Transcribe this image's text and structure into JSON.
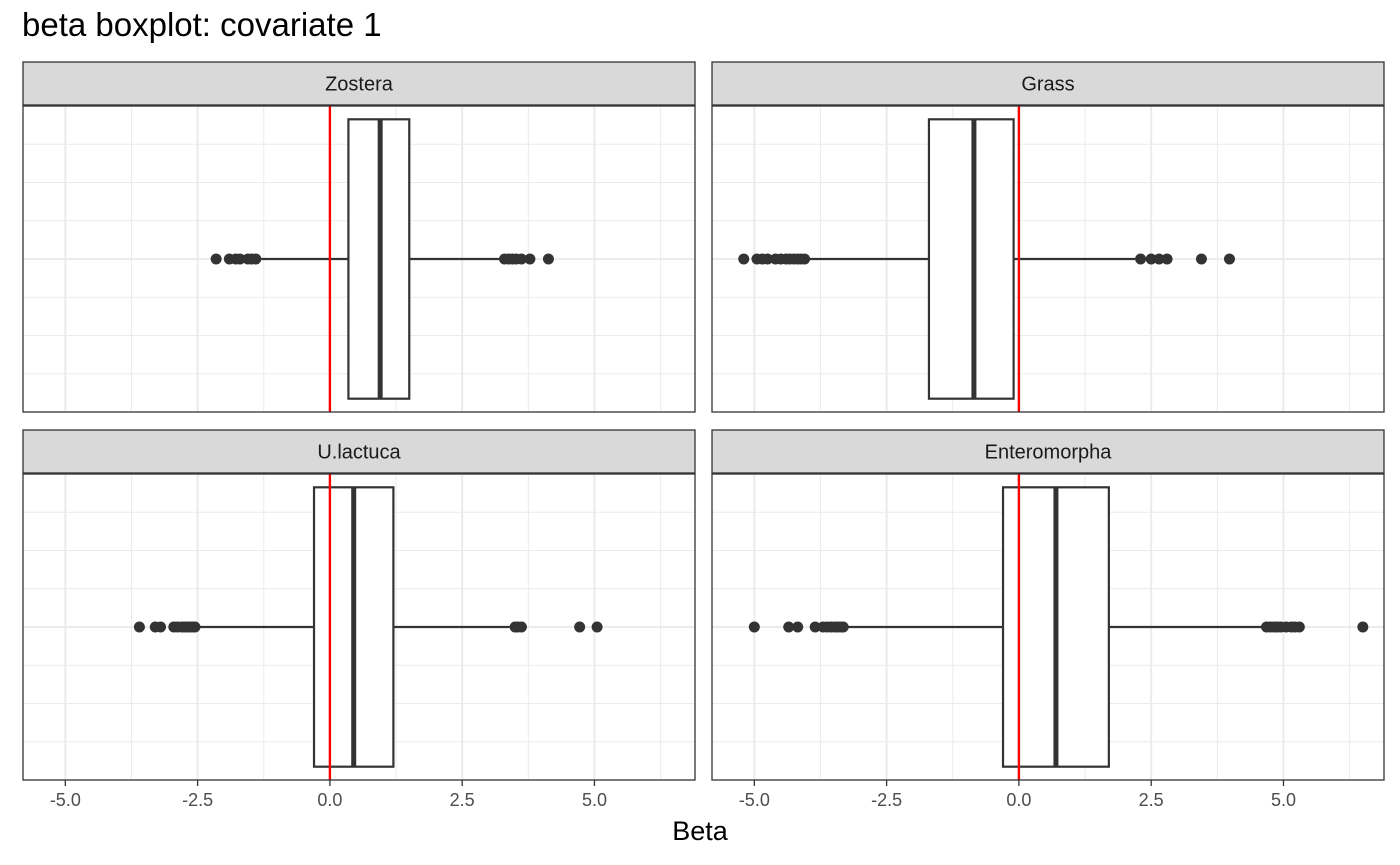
{
  "chart_data": {
    "type": "boxplot",
    "title": "beta boxplot: covariate 1",
    "xlabel": "Beta",
    "ylabel": "",
    "xlim": [
      -5.8,
      6.9
    ],
    "x_ticks": [
      "-5.0",
      "-2.5",
      "0.0",
      "2.5",
      "5.0"
    ],
    "x_tick_values": [
      -5.0,
      -2.5,
      0.0,
      2.5,
      5.0
    ],
    "reference_line": {
      "x": 0.0,
      "color": "#ff0000"
    },
    "grid": true,
    "colors": {
      "box": "#333333",
      "point": "#333333",
      "strip_fill": "#d9d9d9",
      "grid": "#ebebeb",
      "reference": "#ff0000"
    },
    "panels": [
      {
        "name": "Zostera",
        "lower_whisker": -1.3,
        "q1": 0.35,
        "median": 0.95,
        "q3": 1.5,
        "upper_whisker": 3.2,
        "outliers": [
          -2.15,
          -1.9,
          -1.78,
          -1.7,
          -1.55,
          -1.48,
          -1.4,
          3.3,
          3.38,
          3.45,
          3.52,
          3.62,
          3.78,
          4.13
        ]
      },
      {
        "name": "Grass",
        "lower_whisker": -4.0,
        "q1": -1.7,
        "median": -0.85,
        "q3": -0.1,
        "upper_whisker": 2.2,
        "outliers": [
          -5.2,
          -4.95,
          -4.85,
          -4.75,
          -4.6,
          -4.5,
          -4.4,
          -4.33,
          -4.25,
          -4.18,
          -4.12,
          -4.05,
          2.3,
          2.5,
          2.65,
          2.8,
          3.45,
          3.98
        ]
      },
      {
        "name": "U.lactuca",
        "lower_whisker": -2.5,
        "q1": -0.3,
        "median": 0.45,
        "q3": 1.2,
        "upper_whisker": 3.4,
        "outliers": [
          -3.6,
          -3.3,
          -3.2,
          -2.95,
          -2.88,
          -2.8,
          -2.75,
          -2.7,
          -2.65,
          -2.6,
          -2.55,
          3.5,
          3.55,
          3.62,
          4.72,
          5.05
        ]
      },
      {
        "name": "Enteromorpha",
        "lower_whisker": -3.3,
        "q1": -0.3,
        "median": 0.7,
        "q3": 1.7,
        "upper_whisker": 4.6,
        "outliers": [
          -5.0,
          -4.35,
          -4.18,
          -3.85,
          -3.7,
          -3.62,
          -3.55,
          -3.48,
          -3.42,
          -3.36,
          -3.32,
          4.68,
          4.75,
          4.82,
          4.88,
          4.95,
          5.05,
          5.15,
          5.22,
          5.3,
          6.5
        ]
      }
    ]
  }
}
